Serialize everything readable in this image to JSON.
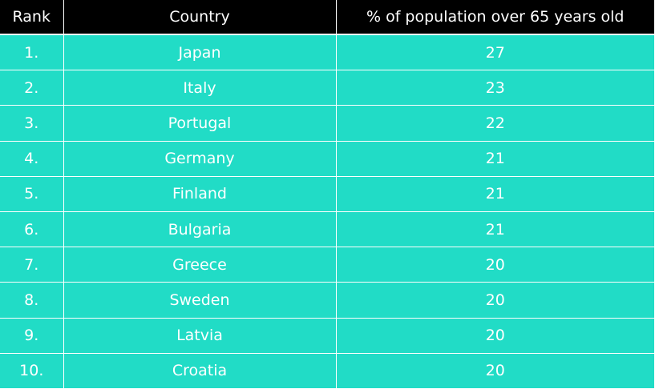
{
  "chart_data": {
    "type": "table",
    "columns": [
      "Rank",
      "Country",
      "% of population over 65 years old"
    ],
    "rows": [
      [
        "1.",
        "Japan",
        "27"
      ],
      [
        "2.",
        "Italy",
        "23"
      ],
      [
        "3.",
        "Portugal",
        "22"
      ],
      [
        "4.",
        "Germany",
        "21"
      ],
      [
        "5.",
        "Finland",
        "21"
      ],
      [
        "6.",
        "Bulgaria",
        "21"
      ],
      [
        "7.",
        "Greece",
        "20"
      ],
      [
        "8.",
        "Sweden",
        "20"
      ],
      [
        "9.",
        "Latvia",
        "20"
      ],
      [
        "10.",
        "Croatia",
        "20"
      ]
    ]
  },
  "colors": {
    "header_bg": "#000000",
    "row_bg": "#21dcc6",
    "text": "#ffffff",
    "grid": "#ffffff"
  }
}
